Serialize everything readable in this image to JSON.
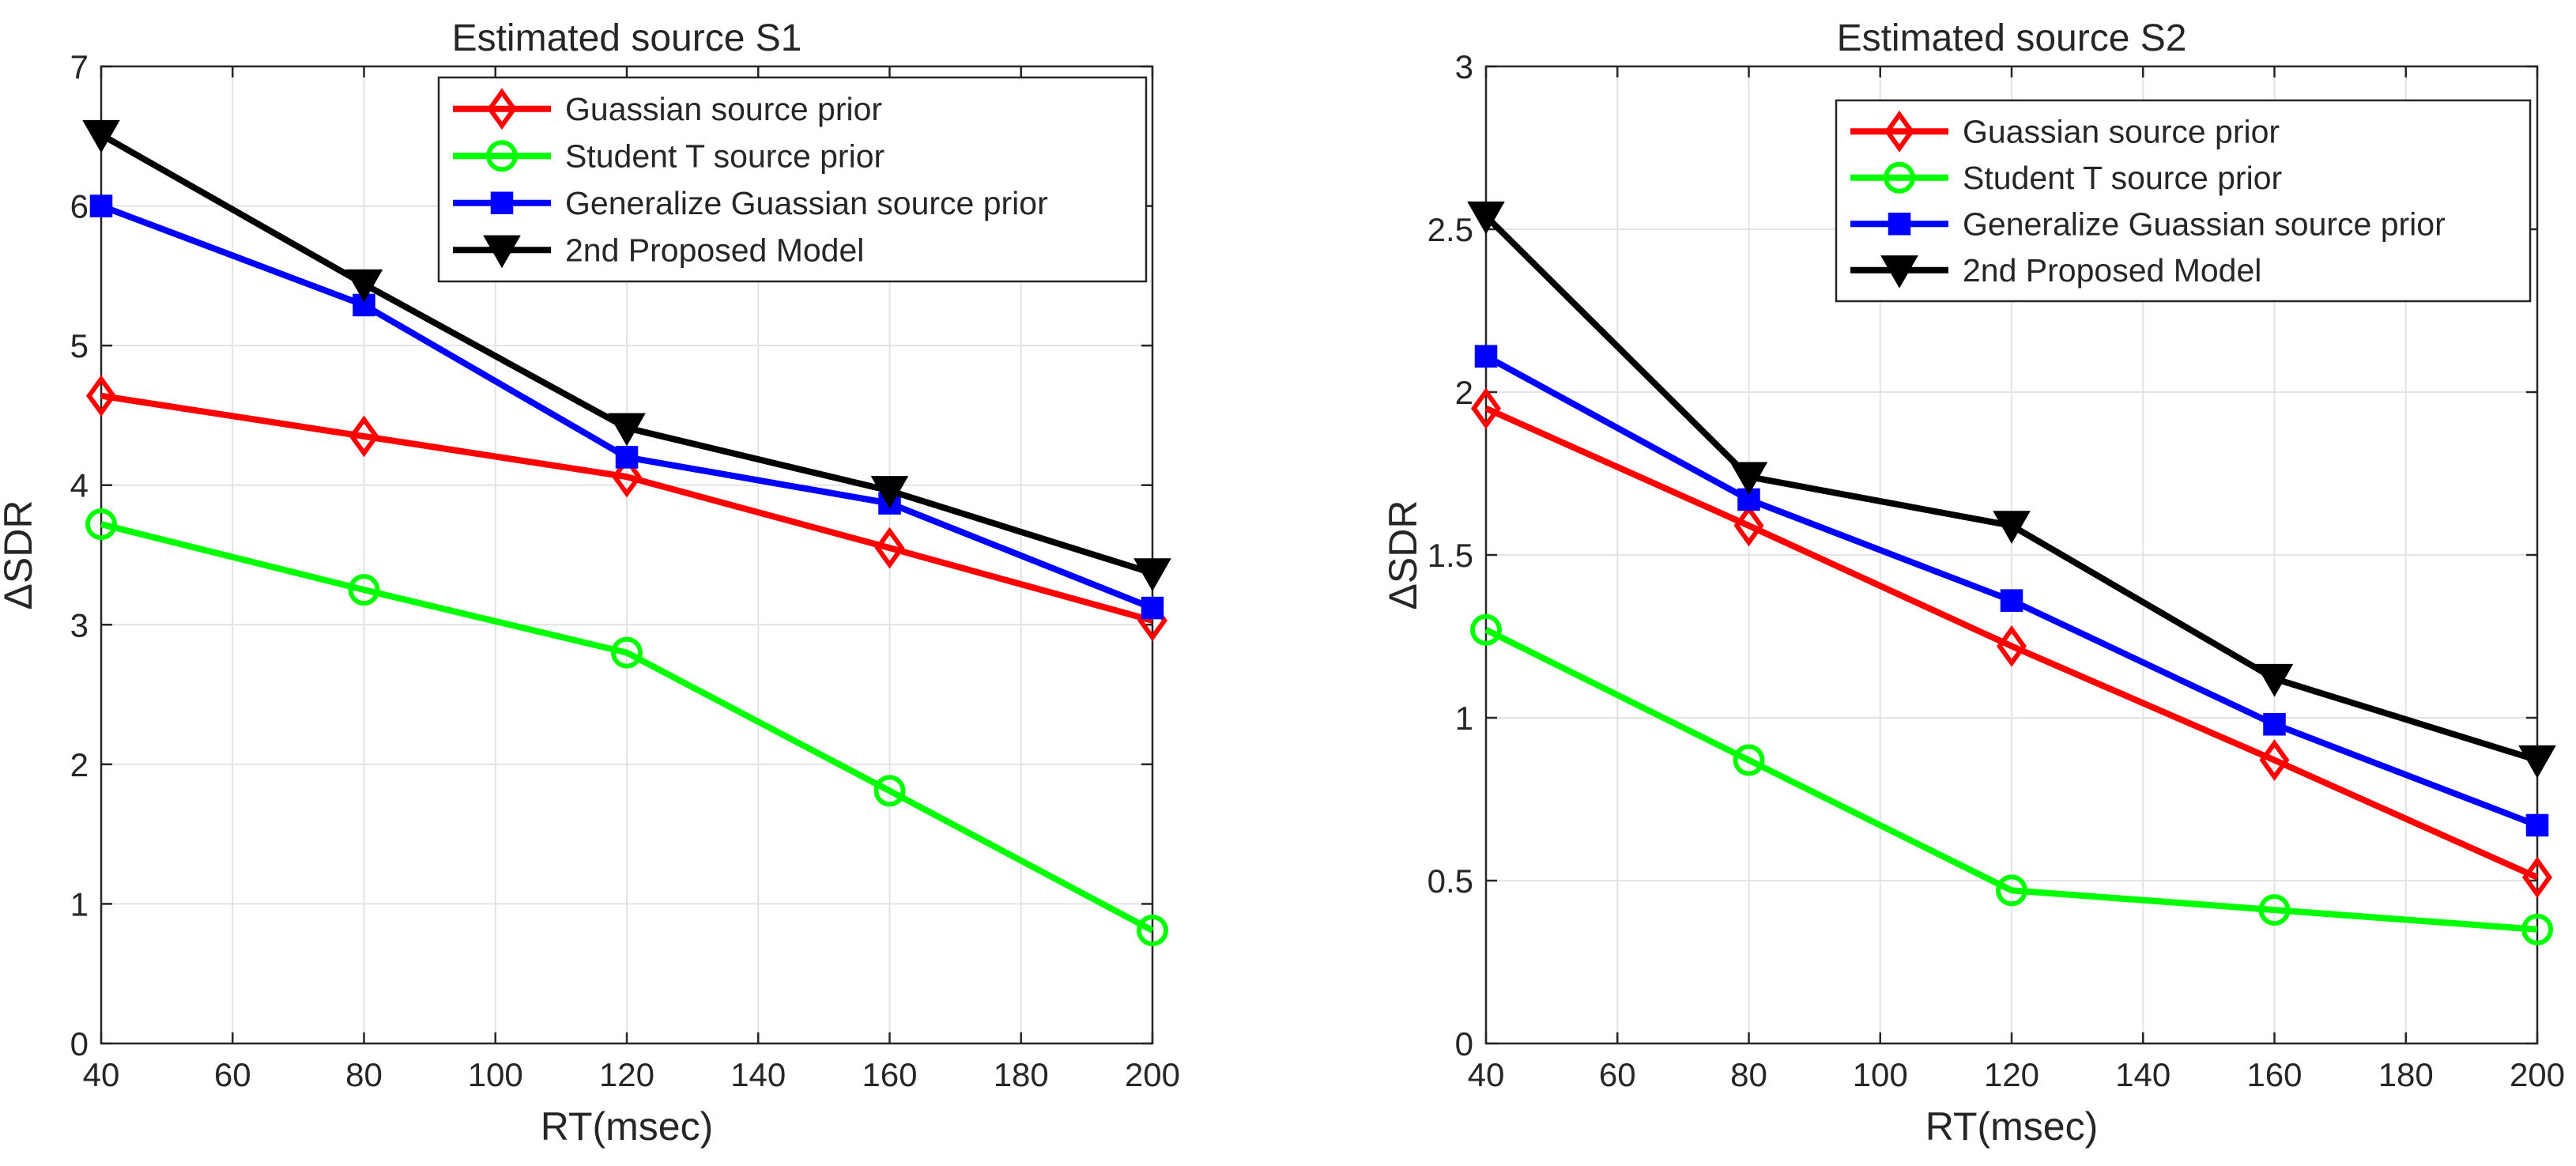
{
  "chart_data": [
    {
      "type": "line",
      "title": "Estimated source S1",
      "xlabel": "RT(msec)",
      "ylabel": "ΔSDR",
      "xlim": [
        40,
        200
      ],
      "ylim": [
        0,
        7
      ],
      "xticks": [
        40,
        60,
        80,
        100,
        120,
        140,
        160,
        180,
        200
      ],
      "yticks": [
        0,
        1,
        2,
        3,
        4,
        5,
        6,
        7
      ],
      "xtick_labels": [
        "40",
        "60",
        "80",
        "100",
        "120",
        "140",
        "160",
        "180",
        "200"
      ],
      "ytick_labels": [
        "0",
        "1",
        "2",
        "3",
        "4",
        "5",
        "6",
        "7"
      ],
      "grid": true,
      "legend_position": "top-right",
      "x": [
        40,
        80,
        120,
        160,
        200
      ],
      "series": [
        {
          "name": "Guassian source prior",
          "color": "#ff0000",
          "marker": "diamond",
          "values": [
            4.64,
            4.35,
            4.06,
            3.55,
            3.03
          ]
        },
        {
          "name": "Student T source prior",
          "color": "#00ff00",
          "marker": "circle",
          "values": [
            3.72,
            3.25,
            2.8,
            1.81,
            0.81
          ]
        },
        {
          "name": "Generalize Guassian source prior",
          "color": "#0000ff",
          "marker": "square",
          "values": [
            6.0,
            5.29,
            4.2,
            3.87,
            3.12
          ]
        },
        {
          "name": "2nd Proposed Model",
          "color": "#000000",
          "marker": "triangle-down",
          "values": [
            6.51,
            5.44,
            4.41,
            3.96,
            3.37
          ]
        }
      ]
    },
    {
      "type": "line",
      "title": "Estimated source S2",
      "xlabel": "RT(msec)",
      "ylabel": "ΔSDR",
      "xlim": [
        40,
        200
      ],
      "ylim": [
        0,
        3
      ],
      "xticks": [
        40,
        60,
        80,
        100,
        120,
        140,
        160,
        180,
        200
      ],
      "yticks": [
        0,
        0.5,
        1,
        1.5,
        2,
        2.5,
        3
      ],
      "xtick_labels": [
        "40",
        "60",
        "80",
        "100",
        "120",
        "140",
        "160",
        "180",
        "200"
      ],
      "ytick_labels": [
        "0",
        "0.5",
        "1",
        "1.5",
        "2",
        "2.5",
        "3"
      ],
      "grid": true,
      "legend_position": "top-right",
      "x": [
        40,
        80,
        120,
        160,
        200
      ],
      "series": [
        {
          "name": "Guassian source prior",
          "color": "#ff0000",
          "marker": "diamond",
          "values": [
            1.95,
            1.59,
            1.22,
            0.87,
            0.51
          ]
        },
        {
          "name": "Student T source prior",
          "color": "#00ff00",
          "marker": "circle",
          "values": [
            1.27,
            0.87,
            0.47,
            0.41,
            0.35
          ]
        },
        {
          "name": "Generalize Guassian source prior",
          "color": "#0000ff",
          "marker": "square",
          "values": [
            2.11,
            1.67,
            1.36,
            0.98,
            0.67
          ]
        },
        {
          "name": "2nd Proposed Model",
          "color": "#000000",
          "marker": "triangle-down",
          "values": [
            2.54,
            1.74,
            1.59,
            1.12,
            0.87
          ]
        }
      ]
    }
  ]
}
